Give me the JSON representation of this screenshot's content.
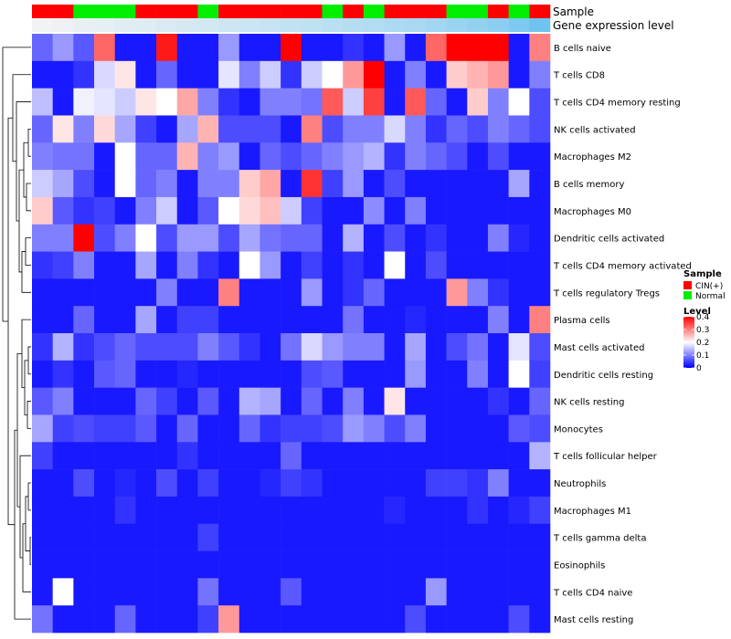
{
  "chart_data": {
    "type": "heatmap",
    "annotations": [
      {
        "name": "Sample",
        "colors": {
          "CIN(+)": "#ff0000",
          "Normal": "#00ee00"
        },
        "values": [
          "CIN(+)",
          "CIN(+)",
          "Normal",
          "Normal",
          "Normal",
          "CIN(+)",
          "CIN(+)",
          "CIN(+)",
          "Normal",
          "CIN(+)",
          "CIN(+)",
          "CIN(+)",
          "CIN(+)",
          "CIN(+)",
          "Normal",
          "CIN(+)",
          "Normal",
          "CIN(+)",
          "CIN(+)",
          "CIN(+)",
          "Normal",
          "Normal",
          "CIN(+)",
          "Normal",
          "CIN(+)"
        ]
      },
      {
        "name": "Gene expression level",
        "values": [
          0.02,
          0.05,
          0.08,
          0.1,
          0.13,
          0.15,
          0.18,
          0.2,
          0.23,
          0.26,
          0.28,
          0.31,
          0.34,
          0.36,
          0.39,
          0.42,
          0.45,
          0.48,
          0.51,
          0.55,
          0.6,
          0.65,
          0.7,
          0.8,
          0.9
        ]
      }
    ],
    "rows": [
      "B cells naive",
      "T cells CD8",
      "T cells CD4 memory resting",
      "NK cells activated",
      "Macrophages M2",
      "B cells memory",
      "Macrophages M0",
      "Dendritic cells activated",
      "T cells CD4 memory activated",
      "T cells regulatory  Tregs",
      "Plasma cells",
      "Mast cells activated",
      "Dendritic cells resting",
      "NK cells resting",
      "Monocytes",
      "T cells follicular helper",
      "Neutrophils",
      "Macrophages M1",
      "T cells gamma delta",
      "Eosinophils",
      "T cells CD4 naive",
      "Mast cells resting"
    ],
    "values": [
      [
        0.08,
        0.12,
        0.07,
        0.32,
        0.02,
        0.02,
        0.38,
        0.02,
        0.02,
        0.12,
        0.02,
        0.02,
        0.4,
        0.02,
        0.02,
        0.04,
        0.02,
        0.12,
        0.02,
        0.32,
        0.4,
        0.4,
        0.4,
        0.02,
        0.3
      ],
      [
        0.02,
        0.02,
        0.04,
        0.17,
        0.22,
        0.02,
        0.08,
        0.02,
        0.02,
        0.18,
        0.1,
        0.16,
        0.04,
        0.16,
        0.2,
        0.28,
        0.4,
        0.02,
        0.1,
        0.02,
        0.24,
        0.26,
        0.28,
        0.02,
        0.1
      ],
      [
        0.15,
        0.02,
        0.19,
        0.18,
        0.16,
        0.22,
        0.2,
        0.27,
        0.1,
        0.04,
        0.02,
        0.1,
        0.1,
        0.09,
        0.33,
        0.16,
        0.35,
        0.02,
        0.33,
        0.08,
        0.02,
        0.24,
        0.1,
        0.2,
        0.06
      ],
      [
        0.08,
        0.22,
        0.1,
        0.23,
        0.13,
        0.05,
        0.02,
        0.13,
        0.26,
        0.06,
        0.06,
        0.06,
        0.02,
        0.3,
        0.06,
        0.1,
        0.1,
        0.17,
        0.1,
        0.04,
        0.08,
        0.06,
        0.1,
        0.08,
        0.06
      ],
      [
        0.1,
        0.09,
        0.09,
        0.02,
        0.2,
        0.08,
        0.08,
        0.26,
        0.1,
        0.12,
        0.02,
        0.08,
        0.06,
        0.08,
        0.1,
        0.12,
        0.14,
        0.04,
        0.1,
        0.08,
        0.06,
        0.02,
        0.06,
        0.02,
        0.02
      ],
      [
        0.16,
        0.13,
        0.06,
        0.02,
        0.2,
        0.08,
        0.1,
        0.02,
        0.1,
        0.1,
        0.24,
        0.27,
        0.02,
        0.36,
        0.05,
        0.12,
        0.02,
        0.06,
        0.02,
        0.02,
        0.02,
        0.02,
        0.02,
        0.13,
        0.02
      ],
      [
        0.24,
        0.07,
        0.04,
        0.05,
        0.02,
        0.1,
        0.16,
        0.02,
        0.07,
        0.2,
        0.23,
        0.25,
        0.16,
        0.05,
        0.02,
        0.02,
        0.11,
        0.02,
        0.1,
        0.02,
        0.02,
        0.02,
        0.02,
        0.02,
        0.02
      ],
      [
        0.1,
        0.1,
        0.4,
        0.06,
        0.1,
        0.2,
        0.06,
        0.12,
        0.12,
        0.06,
        0.13,
        0.09,
        0.08,
        0.08,
        0.02,
        0.14,
        0.02,
        0.06,
        0.02,
        0.04,
        0.02,
        0.02,
        0.1,
        0.03,
        0.02
      ],
      [
        0.04,
        0.05,
        0.1,
        0.02,
        0.02,
        0.13,
        0.02,
        0.1,
        0.04,
        0.02,
        0.2,
        0.12,
        0.02,
        0.05,
        0.02,
        0.04,
        0.02,
        0.2,
        0.02,
        0.06,
        0.02,
        0.02,
        0.02,
        0.02,
        0.02
      ],
      [
        0.02,
        0.02,
        0.02,
        0.02,
        0.02,
        0.02,
        0.1,
        0.02,
        0.02,
        0.3,
        0.02,
        0.02,
        0.02,
        0.12,
        0.02,
        0.04,
        0.08,
        0.02,
        0.02,
        0.02,
        0.28,
        0.1,
        0.04,
        0.02,
        0.02
      ],
      [
        0.02,
        0.02,
        0.08,
        0.02,
        0.02,
        0.13,
        0.02,
        0.05,
        0.05,
        0.02,
        0.02,
        0.02,
        0.02,
        0.02,
        0.02,
        0.09,
        0.02,
        0.02,
        0.03,
        0.02,
        0.02,
        0.02,
        0.1,
        0.02,
        0.3
      ],
      [
        0.04,
        0.14,
        0.04,
        0.06,
        0.08,
        0.06,
        0.06,
        0.06,
        0.1,
        0.07,
        0.04,
        0.02,
        0.09,
        0.17,
        0.12,
        0.1,
        0.1,
        0.02,
        0.13,
        0.02,
        0.06,
        0.09,
        0.02,
        0.18,
        0.06
      ],
      [
        0.02,
        0.04,
        0.02,
        0.07,
        0.08,
        0.02,
        0.02,
        0.03,
        0.02,
        0.02,
        0.02,
        0.02,
        0.02,
        0.06,
        0.07,
        0.02,
        0.02,
        0.02,
        0.12,
        0.02,
        0.02,
        0.1,
        0.02,
        0.2,
        0.05
      ],
      [
        0.07,
        0.1,
        0.02,
        0.02,
        0.02,
        0.08,
        0.05,
        0.02,
        0.07,
        0.02,
        0.14,
        0.13,
        0.02,
        0.08,
        0.02,
        0.1,
        0.02,
        0.22,
        0.02,
        0.02,
        0.02,
        0.02,
        0.04,
        0.02,
        0.08
      ],
      [
        0.13,
        0.05,
        0.06,
        0.05,
        0.05,
        0.07,
        0.02,
        0.08,
        0.02,
        0.02,
        0.08,
        0.04,
        0.05,
        0.05,
        0.06,
        0.12,
        0.1,
        0.06,
        0.1,
        0.02,
        0.02,
        0.02,
        0.02,
        0.07,
        0.06
      ],
      [
        0.05,
        0.02,
        0.02,
        0.02,
        0.02,
        0.02,
        0.02,
        0.04,
        0.02,
        0.02,
        0.02,
        0.02,
        0.08,
        0.02,
        0.02,
        0.02,
        0.02,
        0.02,
        0.02,
        0.02,
        0.02,
        0.02,
        0.02,
        0.02,
        0.14
      ],
      [
        0.02,
        0.02,
        0.06,
        0.02,
        0.03,
        0.02,
        0.06,
        0.02,
        0.05,
        0.02,
        0.02,
        0.03,
        0.05,
        0.04,
        0.02,
        0.02,
        0.02,
        0.02,
        0.02,
        0.05,
        0.05,
        0.04,
        0.1,
        0.02,
        0.02
      ],
      [
        0.02,
        0.02,
        0.02,
        0.02,
        0.04,
        0.02,
        0.02,
        0.02,
        0.02,
        0.02,
        0.02,
        0.02,
        0.02,
        0.02,
        0.02,
        0.02,
        0.02,
        0.03,
        0.02,
        0.02,
        0.02,
        0.04,
        0.02,
        0.03,
        0.05
      ],
      [
        0.02,
        0.02,
        0.02,
        0.02,
        0.02,
        0.02,
        0.02,
        0.02,
        0.05,
        0.02,
        0.02,
        0.02,
        0.02,
        0.02,
        0.02,
        0.02,
        0.02,
        0.02,
        0.02,
        0.02,
        0.02,
        0.02,
        0.02,
        0.02,
        0.02
      ],
      [
        0.02,
        0.02,
        0.02,
        0.02,
        0.02,
        0.02,
        0.02,
        0.02,
        0.02,
        0.02,
        0.02,
        0.02,
        0.02,
        0.02,
        0.02,
        0.02,
        0.02,
        0.02,
        0.02,
        0.02,
        0.02,
        0.02,
        0.02,
        0.02,
        0.02
      ],
      [
        0.02,
        0.2,
        0.02,
        0.02,
        0.02,
        0.02,
        0.02,
        0.02,
        0.09,
        0.02,
        0.02,
        0.02,
        0.07,
        0.02,
        0.02,
        0.02,
        0.02,
        0.02,
        0.02,
        0.12,
        0.02,
        0.02,
        0.02,
        0.02,
        0.02
      ],
      [
        0.09,
        0.02,
        0.02,
        0.02,
        0.08,
        0.02,
        0.02,
        0.02,
        0.05,
        0.28,
        0.02,
        0.02,
        0.02,
        0.02,
        0.02,
        0.02,
        0.02,
        0.02,
        0.06,
        0.02,
        0.02,
        0.02,
        0.02,
        0.06,
        0.02
      ]
    ],
    "scale": {
      "min": 0,
      "max": 0.4,
      "low": "#0000ff",
      "mid": "#ffffff",
      "high": "#ff0000"
    },
    "legend": {
      "sample_title": "Sample",
      "sample_items": [
        {
          "label": "CIN(+)",
          "color": "#ff0000"
        },
        {
          "label": "Normal",
          "color": "#00ee00"
        }
      ],
      "level_title": "Level",
      "level_ticks": [
        {
          "label": "0.4",
          "value": 0.4
        },
        {
          "label": "0.3",
          "value": 0.3
        },
        {
          "label": "0.2",
          "value": 0.2
        },
        {
          "label": "0.1",
          "value": 0.1
        },
        {
          "label": "0",
          "value": 0
        }
      ],
      "position": "right"
    }
  }
}
